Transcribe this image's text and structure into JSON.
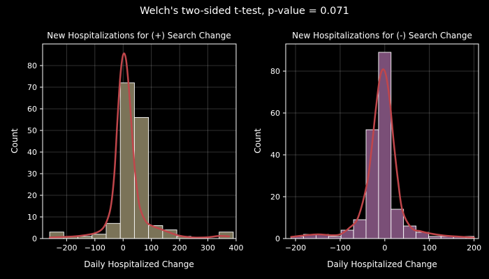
{
  "figure": {
    "title": "Welch's two-sided t-test, p-value = 0.071",
    "background": "#000000"
  },
  "chart_data": [
    {
      "type": "bar",
      "subtype": "histogram-with-kde",
      "title": "New Hospitalizations for (+) Search Change",
      "xlabel": "Daily Hospitalized Change",
      "ylabel": "Count",
      "xlim": [
        -285,
        400
      ],
      "ylim": [
        0,
        90
      ],
      "xticks": [
        -200,
        -100,
        0,
        100,
        200,
        300,
        400
      ],
      "yticks": [
        0,
        10,
        20,
        30,
        40,
        50,
        60,
        70,
        80
      ],
      "grid": true,
      "bar_color": "#7b7358",
      "edge_color": "#ffffff",
      "kde_color": "#c0464b",
      "bins": [
        {
          "x0": -260,
          "x1": -210,
          "count": 3
        },
        {
          "x0": -210,
          "x1": -160,
          "count": 1
        },
        {
          "x0": -160,
          "x1": -110,
          "count": 1
        },
        {
          "x0": -110,
          "x1": -60,
          "count": 2
        },
        {
          "x0": -60,
          "x1": -10,
          "count": 7
        },
        {
          "x0": -10,
          "x1": 40,
          "count": 72
        },
        {
          "x0": 40,
          "x1": 90,
          "count": 56
        },
        {
          "x0": 90,
          "x1": 140,
          "count": 6
        },
        {
          "x0": 140,
          "x1": 190,
          "count": 4
        },
        {
          "x0": 190,
          "x1": 240,
          "count": 1
        },
        {
          "x0": 240,
          "x1": 290,
          "count": 0
        },
        {
          "x0": 290,
          "x1": 340,
          "count": 0
        },
        {
          "x0": 340,
          "x1": 390,
          "count": 3
        }
      ],
      "kde": {
        "x": [
          -260,
          -200,
          -150,
          -100,
          -70,
          -50,
          -40,
          -30,
          -20,
          -10,
          0,
          10,
          20,
          30,
          40,
          50,
          60,
          80,
          100,
          130,
          160,
          200,
          250,
          300,
          340,
          375
        ],
        "y": [
          0.5,
          0.8,
          1.3,
          2.5,
          5,
          11,
          18,
          32,
          55,
          75,
          85,
          83,
          70,
          52,
          34,
          22,
          14,
          8,
          6,
          4.5,
          3,
          1.3,
          0.5,
          0.6,
          1.2,
          1
        ]
      }
    },
    {
      "type": "bar",
      "subtype": "histogram-with-kde",
      "title": "New Hospitalizations for (-) Search Change",
      "xlabel": "Daily Hospitalized Change",
      "ylabel": "Count",
      "xlim": [
        -222,
        210
      ],
      "ylim": [
        0,
        93
      ],
      "xticks": [
        -200,
        -100,
        0,
        100,
        200
      ],
      "yticks": [
        0,
        20,
        40,
        60,
        80
      ],
      "grid": true,
      "bar_color": "#7a4f77",
      "edge_color": "#ffffff",
      "kde_color": "#c0464b",
      "bins": [
        {
          "x0": -210,
          "x1": -182,
          "count": 1
        },
        {
          "x0": -182,
          "x1": -154,
          "count": 2
        },
        {
          "x0": -154,
          "x1": -126,
          "count": 2
        },
        {
          "x0": -126,
          "x1": -98,
          "count": 1
        },
        {
          "x0": -98,
          "x1": -70,
          "count": 4
        },
        {
          "x0": -70,
          "x1": -42,
          "count": 9
        },
        {
          "x0": -42,
          "x1": -14,
          "count": 52
        },
        {
          "x0": -14,
          "x1": 14,
          "count": 89
        },
        {
          "x0": 14,
          "x1": 42,
          "count": 14
        },
        {
          "x0": 42,
          "x1": 70,
          "count": 6
        },
        {
          "x0": 70,
          "x1": 98,
          "count": 3
        },
        {
          "x0": 98,
          "x1": 126,
          "count": 1
        },
        {
          "x0": 126,
          "x1": 154,
          "count": 1
        },
        {
          "x0": 154,
          "x1": 182,
          "count": 1
        },
        {
          "x0": 182,
          "x1": 200,
          "count": 1
        }
      ],
      "kde": {
        "x": [
          -210,
          -180,
          -150,
          -120,
          -100,
          -80,
          -60,
          -40,
          -30,
          -20,
          -10,
          0,
          10,
          20,
          30,
          40,
          60,
          80,
          100,
          130,
          160,
          200
        ],
        "y": [
          0.8,
          1.5,
          2,
          1.6,
          2,
          5,
          10,
          26,
          42,
          62,
          78,
          80,
          68,
          46,
          27,
          13,
          5,
          3.5,
          2.5,
          1.5,
          1,
          0.4
        ]
      }
    }
  ]
}
